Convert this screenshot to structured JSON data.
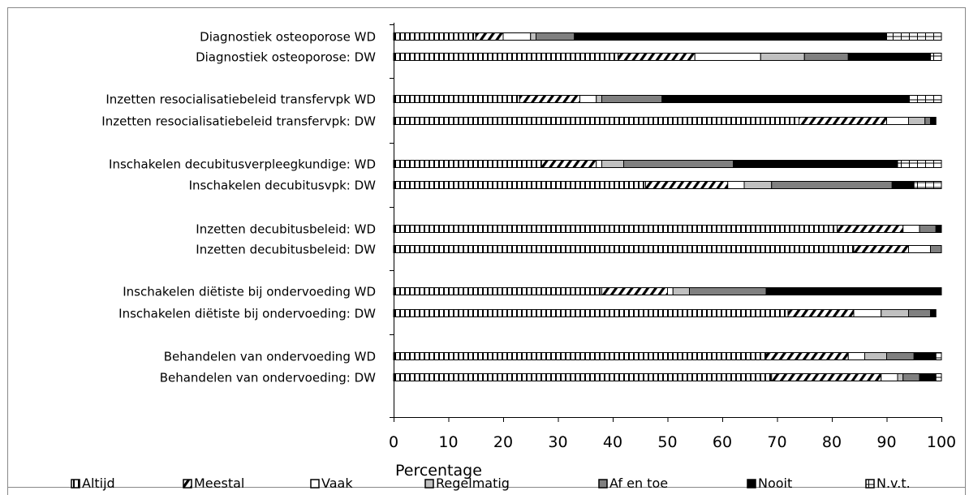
{
  "chart_data": {
    "type": "bar",
    "orientation": "horizontal",
    "stacked": true,
    "categories": [
      "Diagnostiek osteoporose WD",
      "Diagnostiek osteoporose: DW",
      "Inzetten resocialisatiebeleid transfervpk WD",
      "Inzetten resocialisatiebeleid transfervpk: DW",
      "Inschakelen decubitusverpleegkundige: WD",
      "Inschakelen decubitusvpk: DW",
      "Inzetten decubitusbeleid: WD",
      "Inzetten decubitusbeleid: DW",
      "Inschakelen diëtiste bij ondervoeding WD",
      "Inschakelen diëtiste bij ondervoeding: DW",
      "Behandelen van ondervoeding WD",
      "Behandelen van ondervoeding: DW"
    ],
    "series": [
      {
        "name": "Altijd",
        "values": [
          15,
          41,
          23,
          74,
          27,
          46,
          81,
          84,
          38,
          72,
          68,
          69
        ]
      },
      {
        "name": "Meestal",
        "values": [
          5,
          14,
          11,
          16,
          10,
          15,
          12,
          10,
          12,
          12,
          15,
          20
        ]
      },
      {
        "name": "Vaak",
        "values": [
          5,
          12,
          3,
          4,
          1,
          3,
          3,
          4,
          1,
          5,
          3,
          3
        ]
      },
      {
        "name": "Regelmatig",
        "values": [
          1,
          8,
          1,
          3,
          4,
          5,
          0,
          0,
          3,
          5,
          4,
          1
        ]
      },
      {
        "name": "Af en toe",
        "values": [
          7,
          8,
          11,
          1,
          20,
          22,
          3,
          2,
          14,
          4,
          5,
          3
        ]
      },
      {
        "name": "Nooit",
        "values": [
          57,
          15,
          45,
          1,
          30,
          4,
          1,
          0,
          32,
          1,
          4,
          3
        ]
      },
      {
        "name": "N.v.t.",
        "values": [
          10,
          2,
          6,
          0,
          8,
          5,
          0,
          0,
          0,
          0,
          1,
          1
        ]
      }
    ],
    "x_ticks": [
      "0",
      "10",
      "20",
      "30",
      "40",
      "50",
      "60",
      "70",
      "80",
      "90",
      "100"
    ],
    "xlim": [
      0,
      100
    ],
    "xlabel": "Percentage",
    "legend_position": "bottom",
    "grid": false
  }
}
